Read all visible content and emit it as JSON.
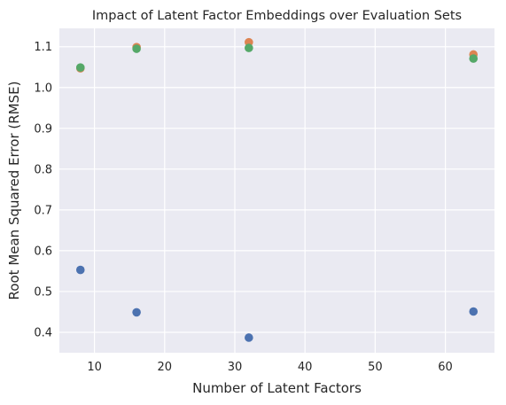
{
  "chart_data": {
    "type": "scatter",
    "title": "Impact of Latent Factor Embeddings over Evaluation Sets",
    "xlabel": "Number of Latent Factors",
    "ylabel": "Root Mean Squared Error (RMSE)",
    "xlim": [
      5,
      67
    ],
    "ylim": [
      0.35,
      1.145
    ],
    "xticks": [
      10,
      20,
      30,
      40,
      50,
      60
    ],
    "yticks": [
      0.4,
      0.5,
      0.6,
      0.7,
      0.8,
      0.9,
      1.0,
      1.1
    ],
    "grid": true,
    "legend": "none",
    "background": "#eaeaf2",
    "grid_color": "#ffffff",
    "series": [
      {
        "color": "#4c72b0",
        "x": [
          8,
          16,
          32,
          64
        ],
        "y": [
          0.553,
          0.449,
          0.387,
          0.451
        ]
      },
      {
        "color": "#dd8452",
        "x": [
          8,
          16,
          32,
          64
        ],
        "y": [
          1.047,
          1.099,
          1.111,
          1.081
        ]
      },
      {
        "color": "#55a868",
        "x": [
          8,
          16,
          32,
          64
        ],
        "y": [
          1.049,
          1.095,
          1.097,
          1.071
        ]
      }
    ]
  }
}
